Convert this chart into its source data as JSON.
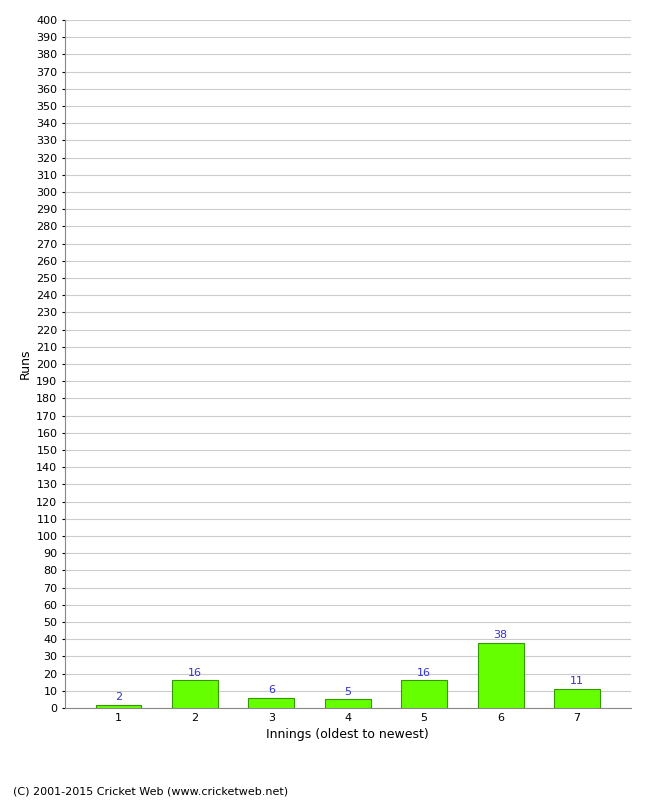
{
  "categories": [
    "1",
    "2",
    "3",
    "4",
    "5",
    "6",
    "7"
  ],
  "values": [
    2,
    16,
    6,
    5,
    16,
    38,
    11
  ],
  "bar_color": "#66ff00",
  "bar_edge_color": "#339900",
  "label_color": "#3333cc",
  "xlabel": "Innings (oldest to newest)",
  "ylabel": "Runs",
  "ylim": [
    0,
    400
  ],
  "background_color": "#ffffff",
  "grid_color": "#cccccc",
  "footer_text": "(C) 2001-2015 Cricket Web (www.cricketweb.net)",
  "label_fontsize": 8,
  "axis_label_fontsize": 9,
  "footer_fontsize": 8,
  "tick_label_fontsize": 8
}
